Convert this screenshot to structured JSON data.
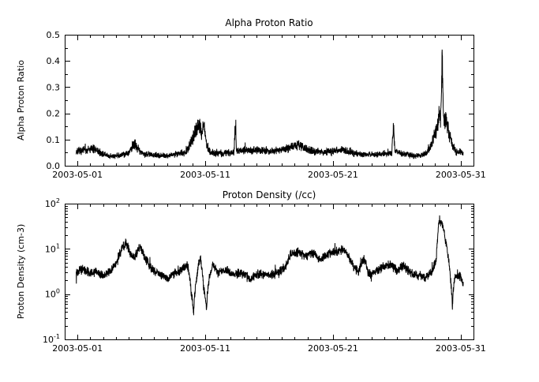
{
  "window": {
    "background": "#ffffff",
    "foreground": "#000000"
  },
  "chart_data": [
    {
      "type": "line",
      "title": "Alpha Proton Ratio",
      "ylabel": "Alpha Proton Ratio",
      "xlabel": "",
      "yscale": "linear",
      "ylim": [
        0.0,
        0.5
      ],
      "grid": false,
      "legend": null,
      "line_color": "#000000",
      "y_ticks": [
        {
          "v": 0.0,
          "label": "0.0"
        },
        {
          "v": 0.1,
          "label": "0.1"
        },
        {
          "v": 0.2,
          "label": "0.2"
        },
        {
          "v": 0.3,
          "label": "0.3"
        },
        {
          "v": 0.4,
          "label": "0.4"
        },
        {
          "v": 0.5,
          "label": "0.5"
        }
      ],
      "y_minor_step": 0.05,
      "x_axis": {
        "range_days": [
          0,
          32
        ],
        "minor_every_days": 1,
        "major_ticks": [
          {
            "day": 1,
            "label": "2003-05-01"
          },
          {
            "day": 11,
            "label": "2003-05-11"
          },
          {
            "day": 21,
            "label": "2003-05-21"
          },
          {
            "day": 31,
            "label": "2003-05-31"
          }
        ]
      },
      "series": {
        "name": "alpha-proton-ratio",
        "day_start": 0.9,
        "day_end": 31.2,
        "n_points": 2600,
        "noise": {
          "triangular_rel": 0.3,
          "abs": 0.004,
          "spike_prob": 0.015,
          "spike_rel": 0.45
        },
        "control_points": {
          "day": [
            0.9,
            1.5,
            2.2,
            2.8,
            3.5,
            4.2,
            5.0,
            5.5,
            5.8,
            6.2,
            7.0,
            8.0,
            8.8,
            9.5,
            9.9,
            10.2,
            10.5,
            10.7,
            10.9,
            11.1,
            11.4,
            12.0,
            12.8,
            13.25,
            13.35,
            13.45,
            14.0,
            15.0,
            16.0,
            17.0,
            17.8,
            18.3,
            18.8,
            19.5,
            20.3,
            21.0,
            21.8,
            22.5,
            23.3,
            24.0,
            25.0,
            25.6,
            25.75,
            25.85,
            26.5,
            27.3,
            28.0,
            28.5,
            28.9,
            29.2,
            29.45,
            29.55,
            29.65,
            29.9,
            30.1,
            30.4,
            30.7,
            31.2
          ],
          "value": [
            0.055,
            0.06,
            0.065,
            0.05,
            0.035,
            0.04,
            0.05,
            0.085,
            0.06,
            0.045,
            0.04,
            0.038,
            0.045,
            0.05,
            0.09,
            0.13,
            0.17,
            0.12,
            0.16,
            0.08,
            0.05,
            0.048,
            0.05,
            0.05,
            0.16,
            0.055,
            0.06,
            0.06,
            0.055,
            0.06,
            0.075,
            0.08,
            0.065,
            0.055,
            0.05,
            0.055,
            0.06,
            0.05,
            0.045,
            0.042,
            0.045,
            0.05,
            0.15,
            0.055,
            0.045,
            0.038,
            0.04,
            0.06,
            0.11,
            0.16,
            0.2,
            0.44,
            0.18,
            0.17,
            0.12,
            0.07,
            0.05,
            0.05
          ]
        }
      }
    },
    {
      "type": "line",
      "title": "Proton Density (/cc)",
      "ylabel": "Proton Density (cm-3)",
      "xlabel": "",
      "yscale": "log",
      "ylim": [
        0.1,
        100
      ],
      "grid": false,
      "legend": null,
      "line_color": "#000000",
      "y_decades": [
        -1,
        0,
        1,
        2
      ],
      "y_tick_label_base": "10",
      "x_axis": {
        "range_days": [
          0,
          32
        ],
        "minor_every_days": 1,
        "major_ticks": [
          {
            "day": 1,
            "label": "2003-05-01"
          },
          {
            "day": 11,
            "label": "2003-05-11"
          },
          {
            "day": 21,
            "label": "2003-05-21"
          },
          {
            "day": 31,
            "label": "2003-05-31"
          }
        ]
      },
      "series": {
        "name": "proton-density",
        "day_start": 0.9,
        "day_end": 31.2,
        "n_points": 2600,
        "noise": {
          "log_triangular": 0.12,
          "spike_prob": 0.012,
          "spike_log": 0.2
        },
        "control_points": {
          "day": [
            0.9,
            1.5,
            2.0,
            2.5,
            3.0,
            3.5,
            4.0,
            4.4,
            4.8,
            5.1,
            5.5,
            5.9,
            6.3,
            6.7,
            7.2,
            8.0,
            8.6,
            9.2,
            9.6,
            9.9,
            10.1,
            10.35,
            10.6,
            10.85,
            11.1,
            11.35,
            11.6,
            12.0,
            12.6,
            13.2,
            13.8,
            14.5,
            15.2,
            16.0,
            16.8,
            17.3,
            17.7,
            18.2,
            18.8,
            19.4,
            20.0,
            20.6,
            21.2,
            21.8,
            22.2,
            22.6,
            23.0,
            23.4,
            23.8,
            24.4,
            25.0,
            25.5,
            26.0,
            26.5,
            27.0,
            27.6,
            28.2,
            28.8,
            29.1,
            29.35,
            29.55,
            29.8,
            30.0,
            30.2,
            30.35,
            30.5,
            30.8,
            31.2
          ],
          "value": [
            3.2,
            3.5,
            2.8,
            3.2,
            2.5,
            3.0,
            4.5,
            9,
            14,
            8,
            6.5,
            11,
            6,
            4,
            3,
            2.2,
            2.8,
            3.5,
            4.5,
            1.0,
            0.35,
            2.5,
            6.5,
            1.5,
            0.45,
            2.5,
            4.5,
            3.0,
            3.4,
            2.6,
            3.0,
            2.2,
            2.8,
            2.6,
            3.2,
            4.0,
            7.5,
            8.5,
            7.0,
            8.0,
            6.0,
            7.5,
            8.5,
            9.5,
            7.0,
            4.0,
            3.0,
            6.0,
            2.8,
            3.2,
            4.0,
            4.5,
            3.2,
            4.2,
            3.0,
            2.6,
            2.4,
            3.2,
            6,
            45,
            35,
            15,
            7,
            2.0,
            0.45,
            2.2,
            2.8,
            1.6
          ]
        }
      }
    }
  ]
}
